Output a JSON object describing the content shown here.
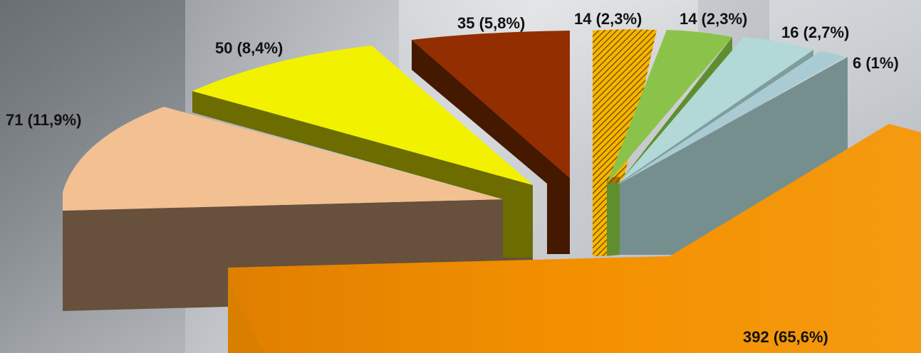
{
  "chart_data": {
    "type": "pie",
    "style": "3d-exploded",
    "title": "",
    "legend": "none",
    "slices": [
      {
        "value": 392,
        "label": "392 (65,6%)",
        "color": "#f39000"
      },
      {
        "value": 71,
        "label": "71 (11,9%)",
        "color": "#f2c091"
      },
      {
        "value": 50,
        "label": "50 (8,4%)",
        "color": "#f2f200"
      },
      {
        "value": 35,
        "label": "35 (5,8%)",
        "color": "#922e00"
      },
      {
        "value": 14,
        "label": "14 (2,3%)",
        "color": "#f2b800",
        "pattern": "hatched"
      },
      {
        "value": 14,
        "label": "14 (2,3%)",
        "color": "#8bc34a"
      },
      {
        "value": 16,
        "label": "16 (2,7%)",
        "color": "#b2d8d8"
      },
      {
        "value": 6,
        "label": "6 (1%)",
        "color": "#a9cbd3"
      }
    ]
  }
}
